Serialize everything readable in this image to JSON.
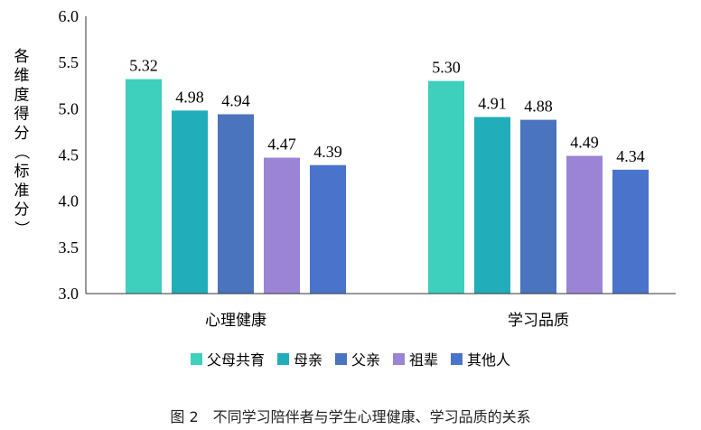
{
  "chart_data": {
    "type": "bar",
    "ylabel": "各维度得分（标准分）",
    "ylim": [
      3.0,
      6.0
    ],
    "yticks": [
      "3.0",
      "3.5",
      "4.0",
      "4.5",
      "5.0",
      "5.5",
      "6.0"
    ],
    "categories": [
      "心理健康",
      "学习品质"
    ],
    "series": [
      {
        "name": "父母共育",
        "color": "#3ECFBD",
        "values": [
          5.32,
          5.3
        ]
      },
      {
        "name": "母亲",
        "color": "#22ADBA",
        "values": [
          4.98,
          4.91
        ]
      },
      {
        "name": "父亲",
        "color": "#4A74BD",
        "values": [
          4.94,
          4.88
        ]
      },
      {
        "name": "祖辈",
        "color": "#9B84D6",
        "values": [
          4.47,
          4.49
        ]
      },
      {
        "name": "其他人",
        "color": "#4A74CB",
        "values": [
          4.39,
          4.34
        ]
      }
    ],
    "caption": "图 2　不同学习陪伴者与学生心理健康、学习品质的关系",
    "grid": false,
    "legend_position": "bottom"
  }
}
